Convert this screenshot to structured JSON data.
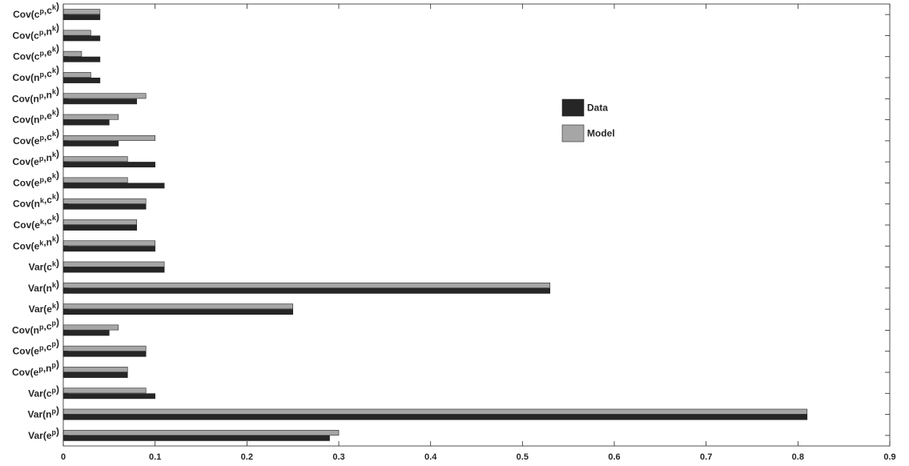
{
  "chart_data": {
    "type": "bar",
    "orientation": "horizontal",
    "grouped": true,
    "categories": [
      "Var(e^p)",
      "Var(n^p)",
      "Var(c^p)",
      "Cov(e^p,n^p)",
      "Cov(e^p,c^p)",
      "Cov(n^p,c^p)",
      "Var(e^k)",
      "Var(n^k)",
      "Var(c^k)",
      "Cov(e^k,n^k)",
      "Cov(e^k,c^k)",
      "Cov(n^k,c^k)",
      "Cov(e^p,e^k)",
      "Cov(e^p,n^k)",
      "Cov(e^p,c^k)",
      "Cov(n^p,e^k)",
      "Cov(n^p,n^k)",
      "Cov(n^p,c^k)",
      "Cov(c^p,e^k)",
      "Cov(c^p,n^k)",
      "Cov(c^p,c^k)"
    ],
    "category_labels": [
      [
        [
          "Var(e",
          ""
        ],
        [
          "p",
          "sup"
        ],
        [
          ")",
          ""
        ]
      ],
      [
        [
          "Var(n",
          ""
        ],
        [
          "p",
          "sup"
        ],
        [
          ")",
          ""
        ]
      ],
      [
        [
          "Var(c",
          ""
        ],
        [
          "p",
          "sup"
        ],
        [
          ")",
          ""
        ]
      ],
      [
        [
          "Cov(e",
          ""
        ],
        [
          "p",
          "sup"
        ],
        [
          ",n",
          ""
        ],
        [
          "p",
          "sup"
        ],
        [
          ")",
          ""
        ]
      ],
      [
        [
          "Cov(e",
          ""
        ],
        [
          "p",
          "sup"
        ],
        [
          ",c",
          ""
        ],
        [
          "p",
          "sup"
        ],
        [
          ")",
          ""
        ]
      ],
      [
        [
          "Cov(n",
          ""
        ],
        [
          "p",
          "sup"
        ],
        [
          ",c",
          ""
        ],
        [
          "p",
          "sup"
        ],
        [
          ")",
          ""
        ]
      ],
      [
        [
          "Var(e",
          ""
        ],
        [
          "k",
          "sup"
        ],
        [
          ")",
          ""
        ]
      ],
      [
        [
          "Var(n",
          ""
        ],
        [
          "k",
          "sup"
        ],
        [
          ")",
          ""
        ]
      ],
      [
        [
          "Var(c",
          ""
        ],
        [
          "k",
          "sup"
        ],
        [
          ")",
          ""
        ]
      ],
      [
        [
          "Cov(e",
          ""
        ],
        [
          "k",
          "sup"
        ],
        [
          ",n",
          ""
        ],
        [
          "k",
          "sup"
        ],
        [
          ")",
          ""
        ]
      ],
      [
        [
          "Cov(e",
          ""
        ],
        [
          "k",
          "sup"
        ],
        [
          ",c",
          ""
        ],
        [
          "k",
          "sup"
        ],
        [
          ")",
          ""
        ]
      ],
      [
        [
          "Cov(n",
          ""
        ],
        [
          "k",
          "sup"
        ],
        [
          ",c",
          ""
        ],
        [
          "k",
          "sup"
        ],
        [
          ")",
          ""
        ]
      ],
      [
        [
          "Cov(e",
          ""
        ],
        [
          "p",
          "sup"
        ],
        [
          ",e",
          ""
        ],
        [
          "k",
          "sup"
        ],
        [
          ")",
          ""
        ]
      ],
      [
        [
          "Cov(e",
          ""
        ],
        [
          "p",
          "sup"
        ],
        [
          ",n",
          ""
        ],
        [
          "k",
          "sup"
        ],
        [
          ")",
          ""
        ]
      ],
      [
        [
          "Cov(e",
          ""
        ],
        [
          "p",
          "sup"
        ],
        [
          ",c",
          ""
        ],
        [
          "k",
          "sup"
        ],
        [
          ")",
          ""
        ]
      ],
      [
        [
          "Cov(n",
          ""
        ],
        [
          "p",
          "sup"
        ],
        [
          ",e",
          ""
        ],
        [
          "k",
          "sup"
        ],
        [
          ")",
          ""
        ]
      ],
      [
        [
          "Cov(n",
          ""
        ],
        [
          "p",
          "sup"
        ],
        [
          ",n",
          ""
        ],
        [
          "k",
          "sup"
        ],
        [
          ")",
          ""
        ]
      ],
      [
        [
          "Cov(n",
          ""
        ],
        [
          "p",
          "sup"
        ],
        [
          ",c",
          ""
        ],
        [
          "k",
          "sup"
        ],
        [
          ")",
          ""
        ]
      ],
      [
        [
          "Cov(c",
          ""
        ],
        [
          "p",
          "sup"
        ],
        [
          ",e",
          ""
        ],
        [
          "k",
          "sup"
        ],
        [
          ")",
          ""
        ]
      ],
      [
        [
          "Cov(c",
          ""
        ],
        [
          "p",
          "sup"
        ],
        [
          ",n",
          ""
        ],
        [
          "k",
          "sup"
        ],
        [
          ")",
          ""
        ]
      ],
      [
        [
          "Cov(c",
          ""
        ],
        [
          "p",
          "sup"
        ],
        [
          ",c",
          ""
        ],
        [
          "k",
          "sup"
        ],
        [
          ")",
          ""
        ]
      ]
    ],
    "series": [
      {
        "name": "Data",
        "color": "#262626",
        "values": [
          0.29,
          0.81,
          0.1,
          0.07,
          0.09,
          0.05,
          0.25,
          0.53,
          0.11,
          0.1,
          0.08,
          0.09,
          0.11,
          0.1,
          0.06,
          0.05,
          0.08,
          0.04,
          0.04,
          0.04,
          0.04
        ]
      },
      {
        "name": "Model",
        "color": "#a6a6a6",
        "values": [
          0.3,
          0.81,
          0.09,
          0.07,
          0.09,
          0.06,
          0.25,
          0.53,
          0.11,
          0.1,
          0.08,
          0.09,
          0.07,
          0.07,
          0.1,
          0.06,
          0.09,
          0.03,
          0.02,
          0.03,
          0.04
        ]
      }
    ],
    "xlim": [
      0,
      0.9
    ],
    "xticks": [
      0,
      0.1,
      0.2,
      0.3,
      0.4,
      0.5,
      0.6,
      0.7,
      0.8,
      0.9
    ],
    "xtick_labels": [
      "0",
      "0.1",
      "0.2",
      "0.3",
      "0.4",
      "0.5",
      "0.6",
      "0.7",
      "0.8",
      "0.9"
    ],
    "grid": false,
    "legend_position": "right",
    "title": "",
    "xlabel": "",
    "ylabel": ""
  }
}
